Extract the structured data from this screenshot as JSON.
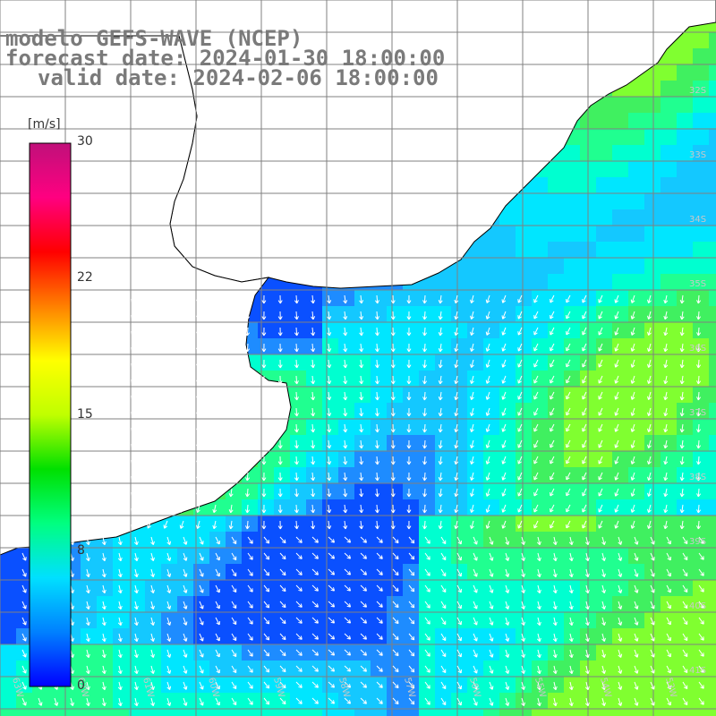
{
  "title": {
    "model": "modelo GEFS-WAVE (NCEP)",
    "forecast": "forecast date: 2024-01-30 18:00:00",
    "valid": "valid date: 2024-02-06 18:00:00"
  },
  "colorbar": {
    "unit": "[m/s]",
    "ticks": [
      "30",
      "22",
      "15",
      "8",
      "0"
    ],
    "range": [
      0,
      30
    ],
    "colors": [
      "#0000ff",
      "#0080ff",
      "#00e0ff",
      "#00ff80",
      "#00e000",
      "#c0ff00",
      "#ffff00",
      "#ff8000",
      "#ff0000",
      "#ff0080",
      "#c0107a"
    ]
  },
  "map": {
    "lat_labels": [
      "32S",
      "33S",
      "34S",
      "35S",
      "36S",
      "37S",
      "38S",
      "39S",
      "40S",
      "41S"
    ],
    "lon_labels": [
      "63W",
      "62W",
      "61W",
      "60W",
      "59W",
      "58W",
      "57W",
      "56W",
      "55W",
      "54W",
      "53W"
    ],
    "grid": true,
    "land_color": "#ffffff",
    "coast_color": "#000000"
  }
}
